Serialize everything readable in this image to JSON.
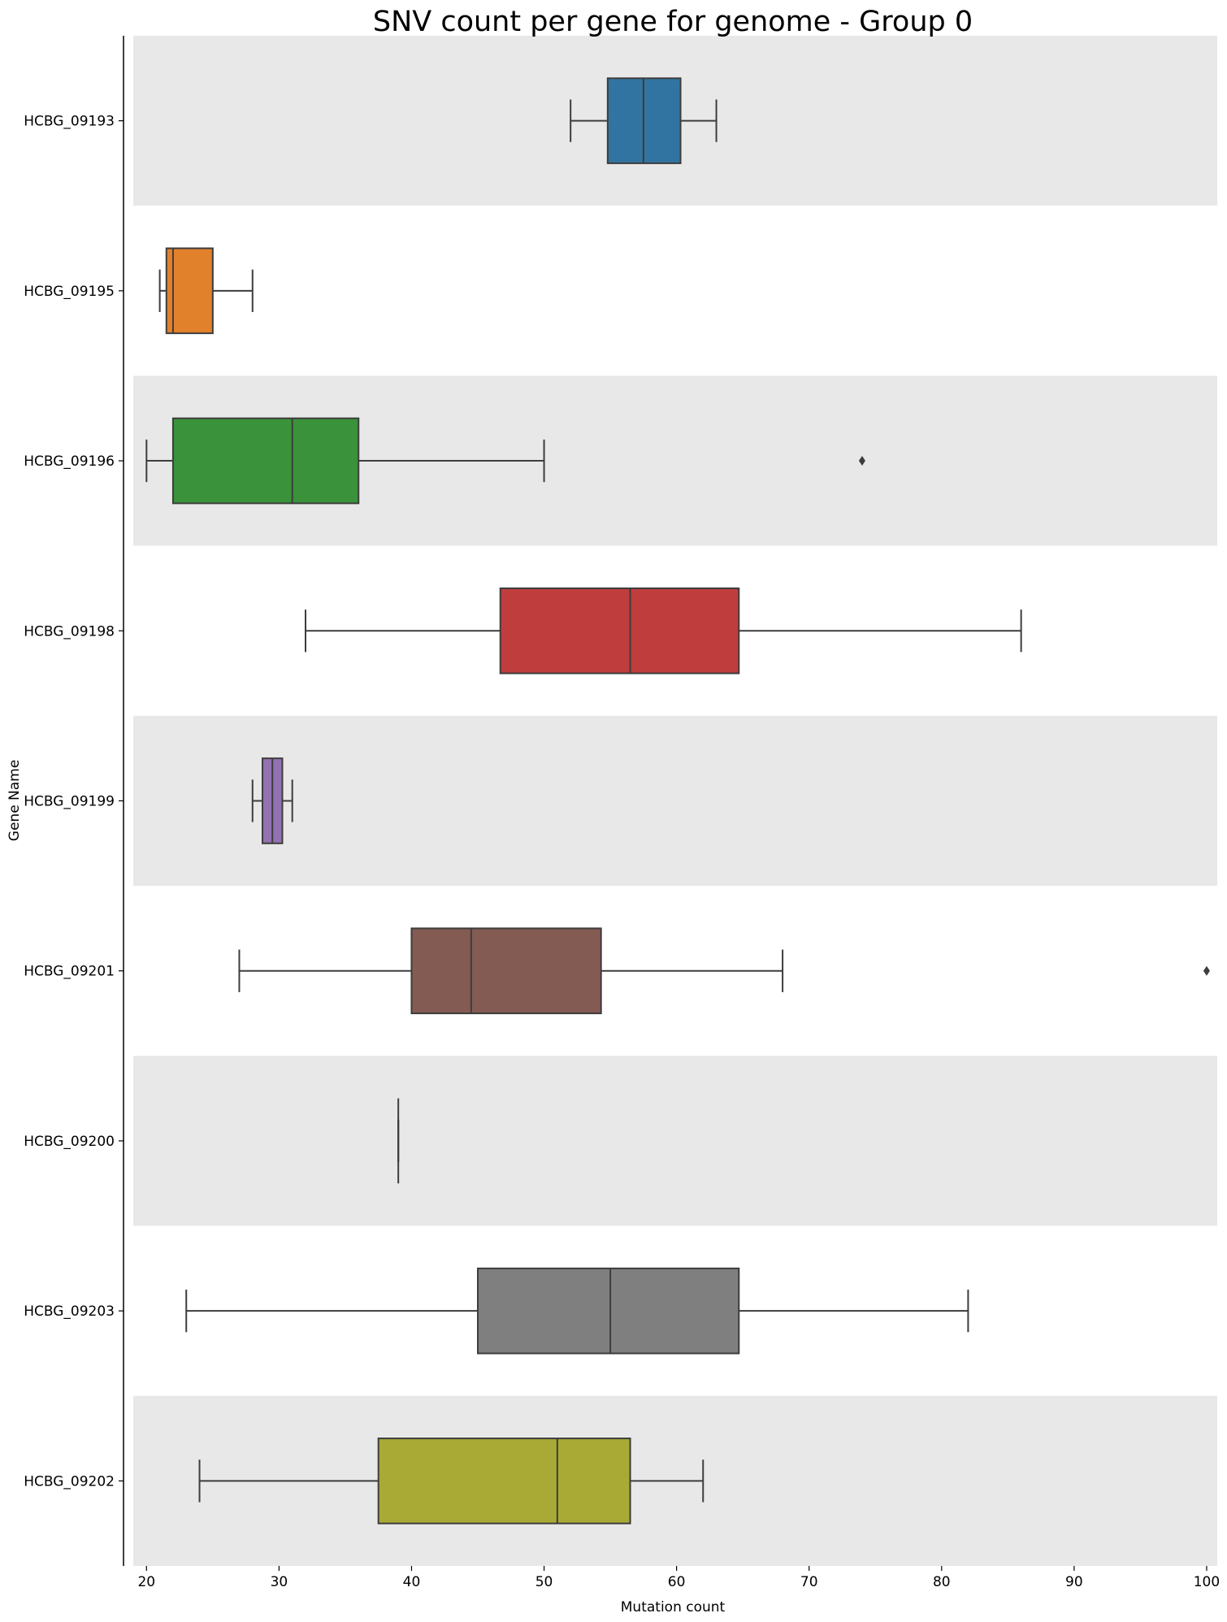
{
  "chart_data": {
    "type": "boxplot",
    "title": "SNV count per gene for genome - Group 0",
    "xlabel": "Mutation count",
    "ylabel": "Gene Name",
    "xlim": [
      19,
      100.8
    ],
    "xticks": [
      20,
      30,
      40,
      50,
      60,
      70,
      80,
      90,
      100
    ],
    "grid": false,
    "band_colors": [
      "#e8e8e8",
      "#ffffff"
    ],
    "categories": [
      "HCBG_09193",
      "HCBG_09195",
      "HCBG_09196",
      "HCBG_09198",
      "HCBG_09199",
      "HCBG_09201",
      "HCBG_09200",
      "HCBG_09203",
      "HCBG_09202"
    ],
    "boxes": [
      {
        "gene": "HCBG_09193",
        "whisker_low": 52,
        "q1": 54.8,
        "median": 57.5,
        "q3": 60.3,
        "whisker_high": 63,
        "outliers": [],
        "color": "#3274a1"
      },
      {
        "gene": "HCBG_09195",
        "whisker_low": 21,
        "q1": 21.5,
        "median": 22,
        "q3": 25,
        "whisker_high": 28,
        "outliers": [],
        "color": "#e1812c"
      },
      {
        "gene": "HCBG_09196",
        "whisker_low": 20,
        "q1": 22,
        "median": 31,
        "q3": 36,
        "whisker_high": 50,
        "outliers": [
          74
        ],
        "color": "#3a923a"
      },
      {
        "gene": "HCBG_09198",
        "whisker_low": 32,
        "q1": 46.7,
        "median": 56.5,
        "q3": 64.7,
        "whisker_high": 86,
        "outliers": [],
        "color": "#c03d3e"
      },
      {
        "gene": "HCBG_09199",
        "whisker_low": 28,
        "q1": 28.75,
        "median": 29.5,
        "q3": 30.25,
        "whisker_high": 31,
        "outliers": [],
        "color": "#9372b2"
      },
      {
        "gene": "HCBG_09201",
        "whisker_low": 27,
        "q1": 40,
        "median": 44.5,
        "q3": 54.3,
        "whisker_high": 68,
        "outliers": [
          100
        ],
        "color": "#845b53"
      },
      {
        "gene": "HCBG_09200",
        "whisker_low": 39,
        "q1": 39,
        "median": 39,
        "q3": 39,
        "whisker_high": 39,
        "outliers": [],
        "color": "#d684bd"
      },
      {
        "gene": "HCBG_09203",
        "whisker_low": 23,
        "q1": 45,
        "median": 55,
        "q3": 64.7,
        "whisker_high": 82,
        "outliers": [],
        "color": "#7f7f7f"
      },
      {
        "gene": "HCBG_09202",
        "whisker_low": 24,
        "q1": 37.5,
        "median": 51,
        "q3": 56.5,
        "whisker_high": 62,
        "outliers": [],
        "color": "#a9aa35"
      }
    ]
  }
}
